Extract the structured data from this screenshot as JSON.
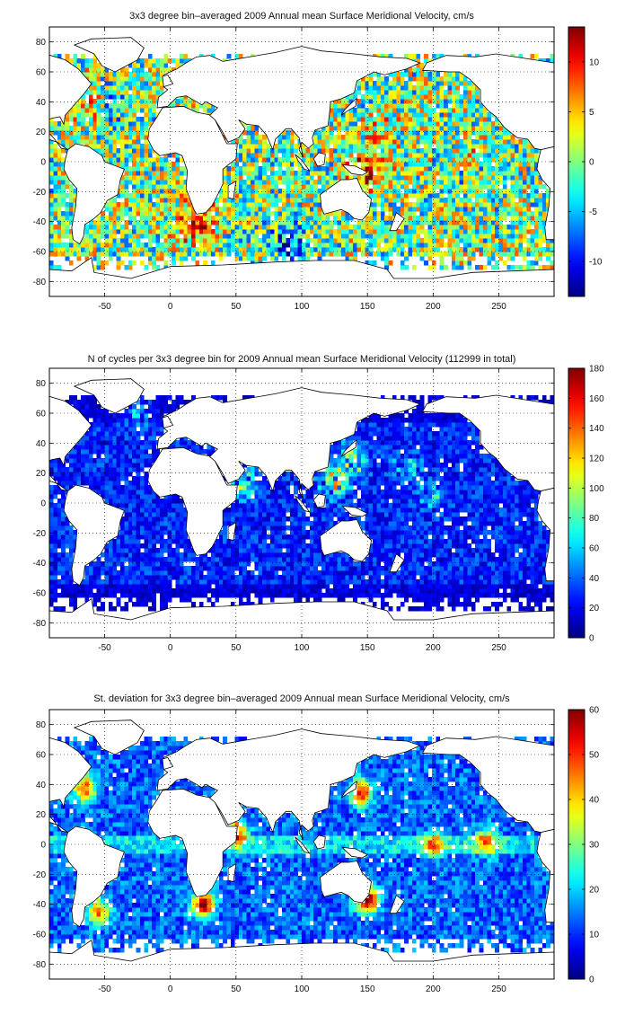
{
  "colors": {
    "land": "#ffffff",
    "coast": "#000000",
    "grid": "#000000",
    "missing": "#ffffff"
  },
  "chart_data": [
    {
      "type": "heatmap",
      "title": "3x3 degree bin–averaged 2009 Annual mean Surface Meridional Velocity, cm/s",
      "bin_size_deg": 3,
      "xlim": [
        -92,
        292
      ],
      "ylim": [
        -90,
        90
      ],
      "x_ticks": [
        -50,
        0,
        50,
        100,
        150,
        200,
        250
      ],
      "x_tick_labels": [
        "-50",
        "0",
        "50",
        "100",
        "150",
        "200",
        "250"
      ],
      "y_ticks": [
        -80,
        -60,
        -40,
        -20,
        0,
        20,
        40,
        60,
        80
      ],
      "y_tick_labels": [
        "-80",
        "-60",
        "-40",
        "-20",
        "0",
        "20",
        "40",
        "60",
        "80"
      ],
      "clim": [
        -13.5,
        13.5
      ],
      "colorbar_ticks": [
        -10,
        -5,
        0,
        5,
        10
      ],
      "colorbar_tick_labels": [
        "-10",
        "-5",
        "0",
        "5",
        "10"
      ],
      "colormap": "jet",
      "grid": true,
      "pattern": {
        "kind": "signed-velocity",
        "features": [
          {
            "lon": 160,
            "lat": 35,
            "value": -9
          },
          {
            "lon": 160,
            "lat": 30,
            "value": 11
          },
          {
            "lon": 150,
            "lat": -5,
            "value": 12
          },
          {
            "lon": 230,
            "lat": 2,
            "value": 10
          },
          {
            "lon": 230,
            "lat": -2,
            "value": -9
          },
          {
            "lon": 265,
            "lat": 45,
            "value": -9
          },
          {
            "lon": -60,
            "lat": 40,
            "value": 10
          },
          {
            "lon": -50,
            "lat": 40,
            "value": -8
          },
          {
            "lon": 20,
            "lat": -40,
            "value": 12
          },
          {
            "lon": 90,
            "lat": -55,
            "value": -10
          }
        ]
      }
    },
    {
      "type": "heatmap",
      "title": "N of cycles per 3x3 degree bin for 2009 Annual mean Surface Meridional Velocity (112999 in total)",
      "bin_size_deg": 3,
      "xlim": [
        -92,
        292
      ],
      "ylim": [
        -90,
        90
      ],
      "x_ticks": [
        -50,
        0,
        50,
        100,
        150,
        200,
        250
      ],
      "x_tick_labels": [
        "-50",
        "0",
        "50",
        "100",
        "150",
        "200",
        "250"
      ],
      "y_ticks": [
        -80,
        -60,
        -40,
        -20,
        0,
        20,
        40,
        60,
        80
      ],
      "y_tick_labels": [
        "-80",
        "-60",
        "-40",
        "-20",
        "0",
        "20",
        "40",
        "60",
        "80"
      ],
      "clim": [
        0,
        180
      ],
      "colorbar_ticks": [
        0,
        20,
        40,
        60,
        80,
        100,
        120,
        140,
        160,
        180
      ],
      "colorbar_tick_labels": [
        "0",
        "20",
        "40",
        "60",
        "80",
        "100",
        "120",
        "140",
        "160",
        "180"
      ],
      "colormap": "jet",
      "grid": true,
      "total_cycles": 112999,
      "pattern": {
        "kind": "counts",
        "typical": 25,
        "features": [
          {
            "lon": 140,
            "lat": 30,
            "value": 110
          },
          {
            "lon": 125,
            "lat": 15,
            "value": 150
          },
          {
            "lon": 55,
            "lat": 15,
            "value": 120
          },
          {
            "lon": -25,
            "lat": 60,
            "value": 70
          },
          {
            "lon": 180,
            "lat": 25,
            "value": 60
          },
          {
            "lon": 200,
            "lat": 5,
            "value": 50
          }
        ]
      }
    },
    {
      "type": "heatmap",
      "title": "St. deviation for 3x3 degree bin–averaged 2009 Annual mean Surface Meridional Velocity, cm/s",
      "bin_size_deg": 3,
      "xlim": [
        -92,
        292
      ],
      "ylim": [
        -90,
        90
      ],
      "x_ticks": [
        -50,
        0,
        50,
        100,
        150,
        200,
        250
      ],
      "x_tick_labels": [
        "-50",
        "0",
        "50",
        "100",
        "150",
        "200",
        "250"
      ],
      "y_ticks": [
        -80,
        -60,
        -40,
        -20,
        0,
        20,
        40,
        60,
        80
      ],
      "y_tick_labels": [
        "-80",
        "-60",
        "-40",
        "-20",
        "0",
        "20",
        "40",
        "60",
        "80"
      ],
      "clim": [
        0,
        60
      ],
      "colorbar_ticks": [
        0,
        10,
        20,
        30,
        40,
        50,
        60
      ],
      "colorbar_tick_labels": [
        "0",
        "10",
        "20",
        "30",
        "40",
        "50",
        "60"
      ],
      "colormap": "jet",
      "grid": true,
      "pattern": {
        "kind": "std-dev",
        "typical": 14,
        "features": [
          {
            "lon": 145,
            "lat": 35,
            "value": 45
          },
          {
            "lon": -65,
            "lat": 38,
            "value": 40
          },
          {
            "lon": 25,
            "lat": -40,
            "value": 50
          },
          {
            "lon": 150,
            "lat": -37,
            "value": 55
          },
          {
            "lon": 50,
            "lat": 8,
            "value": 45
          },
          {
            "lon": 200,
            "lat": 0,
            "value": 30
          },
          {
            "lon": 240,
            "lat": 2,
            "value": 30
          },
          {
            "lon": -55,
            "lat": -45,
            "value": 35
          }
        ]
      }
    }
  ]
}
